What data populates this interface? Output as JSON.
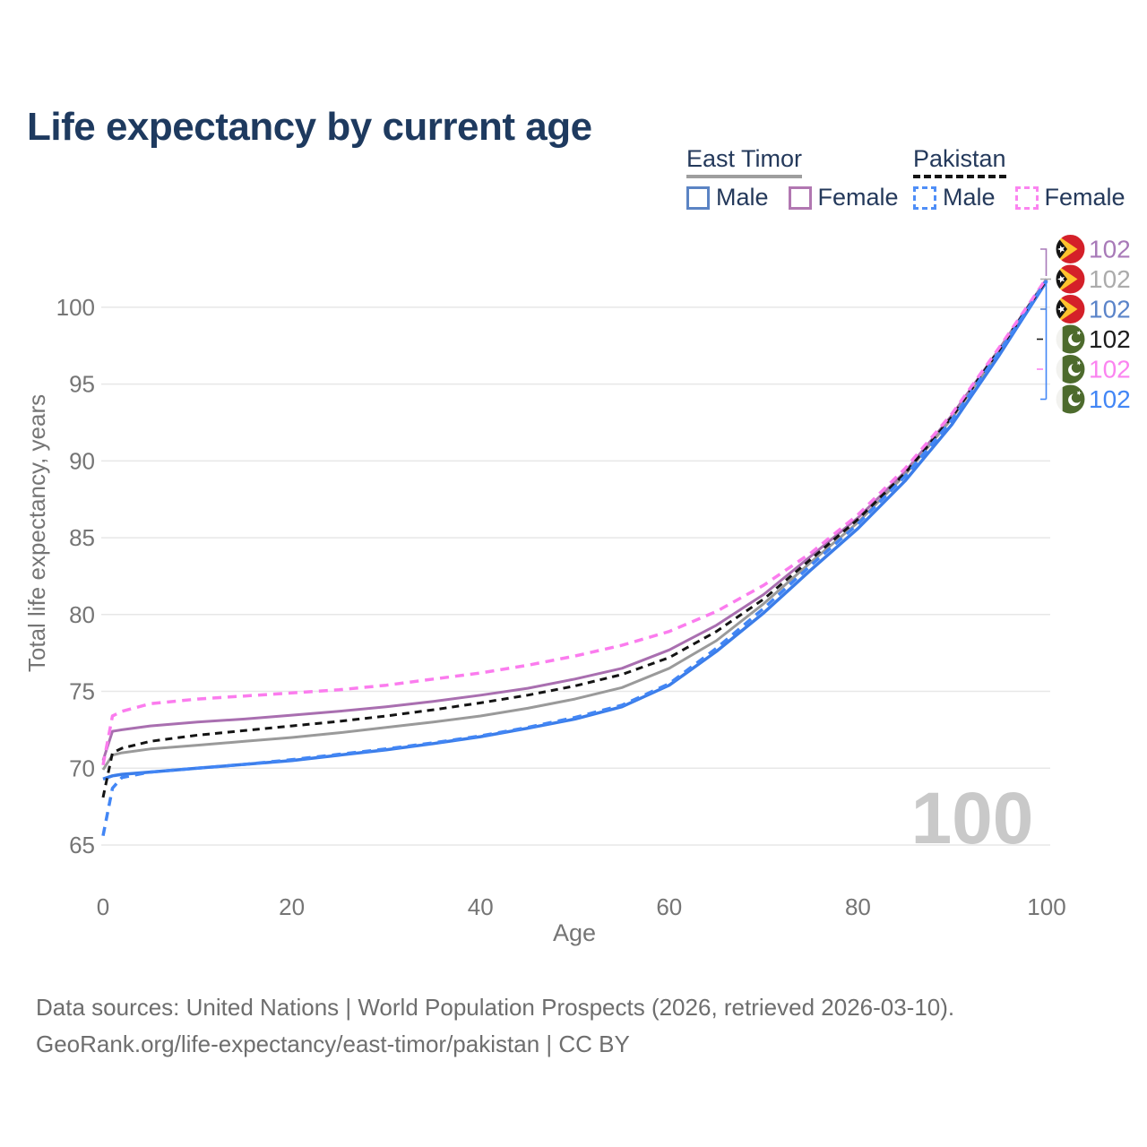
{
  "title": "Life expectancy by current age",
  "legend": {
    "groups": [
      {
        "name": "East Timor",
        "line_style": "solid",
        "line_color": "#9e9e9e",
        "items": [
          {
            "label": "Male",
            "color": "#5b84c4"
          },
          {
            "label": "Female",
            "color": "#b177b1"
          }
        ]
      },
      {
        "name": "Pakistan",
        "line_style": "dashed",
        "line_color": "#141414",
        "items": [
          {
            "label": "Male",
            "color": "#4f8ef7"
          },
          {
            "label": "Female",
            "color": "#fb84f0"
          }
        ]
      }
    ]
  },
  "watermark": "100",
  "chart_data": {
    "type": "line",
    "title": "Life expectancy by current age",
    "xlabel": "Age",
    "ylabel": "Total life expectancy, years",
    "x_ticks": [
      0,
      20,
      40,
      60,
      80,
      100
    ],
    "y_ticks": [
      65,
      70,
      75,
      80,
      85,
      90,
      95,
      100
    ],
    "xlim": [
      0,
      100
    ],
    "ylim": [
      64,
      102.5
    ],
    "grid": "horizontal",
    "legend_position": "top-right",
    "ages": [
      0,
      1,
      2,
      5,
      10,
      15,
      20,
      25,
      30,
      35,
      40,
      45,
      50,
      55,
      60,
      65,
      70,
      75,
      80,
      85,
      90,
      95,
      100
    ],
    "series": [
      {
        "id": "et_female",
        "name": "East Timor Female",
        "country": "East Timor",
        "sex": "Female",
        "color": "#a96fb0",
        "dash": "none",
        "width": 3,
        "values": [
          70.5,
          72.4,
          72.5,
          72.75,
          73.0,
          73.2,
          73.45,
          73.7,
          74.0,
          74.35,
          74.75,
          75.2,
          75.8,
          76.5,
          77.7,
          79.3,
          81.3,
          83.8,
          86.3,
          89.3,
          93.0,
          97.3,
          101.85
        ]
      },
      {
        "id": "et_total",
        "name": "East Timor All",
        "country": "East Timor",
        "sex": "All",
        "color": "#9a9a9a",
        "dash": "none",
        "width": 3,
        "values": [
          69.9,
          70.85,
          71.0,
          71.25,
          71.5,
          71.75,
          72.0,
          72.3,
          72.65,
          73.0,
          73.4,
          73.9,
          74.5,
          75.25,
          76.5,
          78.3,
          80.7,
          83.4,
          86.0,
          89.1,
          92.8,
          97.2,
          101.8
        ]
      },
      {
        "id": "et_male",
        "name": "East Timor Male",
        "country": "East Timor",
        "sex": "Male",
        "color": "#3b7de9",
        "dash": "none",
        "width": 3.5,
        "values": [
          69.3,
          69.5,
          69.6,
          69.75,
          70.0,
          70.25,
          70.5,
          70.85,
          71.2,
          71.6,
          72.05,
          72.6,
          73.2,
          74.0,
          75.4,
          77.6,
          80.1,
          82.9,
          85.6,
          88.7,
          92.4,
          96.9,
          101.7
        ]
      },
      {
        "id": "pak_total",
        "name": "Pakistan All",
        "country": "Pakistan",
        "sex": "All",
        "color": "#141414",
        "dash": "8 6",
        "width": 3,
        "values": [
          68.1,
          71.0,
          71.3,
          71.75,
          72.15,
          72.45,
          72.75,
          73.05,
          73.4,
          73.8,
          74.25,
          74.75,
          75.35,
          76.1,
          77.2,
          78.9,
          81.0,
          83.6,
          86.2,
          89.2,
          92.9,
          97.25,
          101.8
        ]
      },
      {
        "id": "pak_female",
        "name": "Pakistan Female",
        "country": "Pakistan",
        "sex": "Female",
        "color": "#fb7cee",
        "dash": "10 7",
        "width": 3.5,
        "values": [
          70.2,
          73.4,
          73.7,
          74.2,
          74.5,
          74.7,
          74.9,
          75.1,
          75.4,
          75.8,
          76.2,
          76.7,
          77.3,
          78.0,
          78.9,
          80.2,
          81.9,
          84.0,
          86.5,
          89.5,
          93.1,
          97.4,
          101.9
        ]
      },
      {
        "id": "pak_male",
        "name": "Pakistan Male",
        "country": "Pakistan",
        "sex": "Male",
        "color": "#4286f5",
        "dash": "10 7",
        "width": 3.5,
        "values": [
          65.6,
          68.7,
          69.4,
          69.75,
          70.0,
          70.25,
          70.55,
          70.9,
          71.25,
          71.65,
          72.1,
          72.65,
          73.3,
          74.1,
          75.5,
          77.8,
          80.4,
          83.2,
          85.9,
          89.0,
          92.7,
          97.1,
          101.75
        ]
      }
    ],
    "end_labels": [
      {
        "series": "et_female",
        "flag": "east-timor",
        "value": "102",
        "color": "#a87ab8"
      },
      {
        "series": "et_total",
        "flag": "east-timor",
        "value": "102",
        "color": "#ababab"
      },
      {
        "series": "et_male",
        "flag": "east-timor",
        "value": "102",
        "color": "#5b84c9"
      },
      {
        "series": "pak_total",
        "flag": "pakistan",
        "value": "102",
        "color": "#1c1c1c"
      },
      {
        "series": "pak_female",
        "flag": "pakistan",
        "value": "102",
        "color": "#fb84f0"
      },
      {
        "series": "pak_male",
        "flag": "pakistan",
        "value": "102",
        "color": "#4286f5"
      }
    ]
  },
  "footer": {
    "line1": "Data sources: United Nations | World Population Prospects (2026, retrieved 2026-03-10).",
    "line2": "GeoRank.org/life-expectancy/east-timor/pakistan | CC BY"
  }
}
